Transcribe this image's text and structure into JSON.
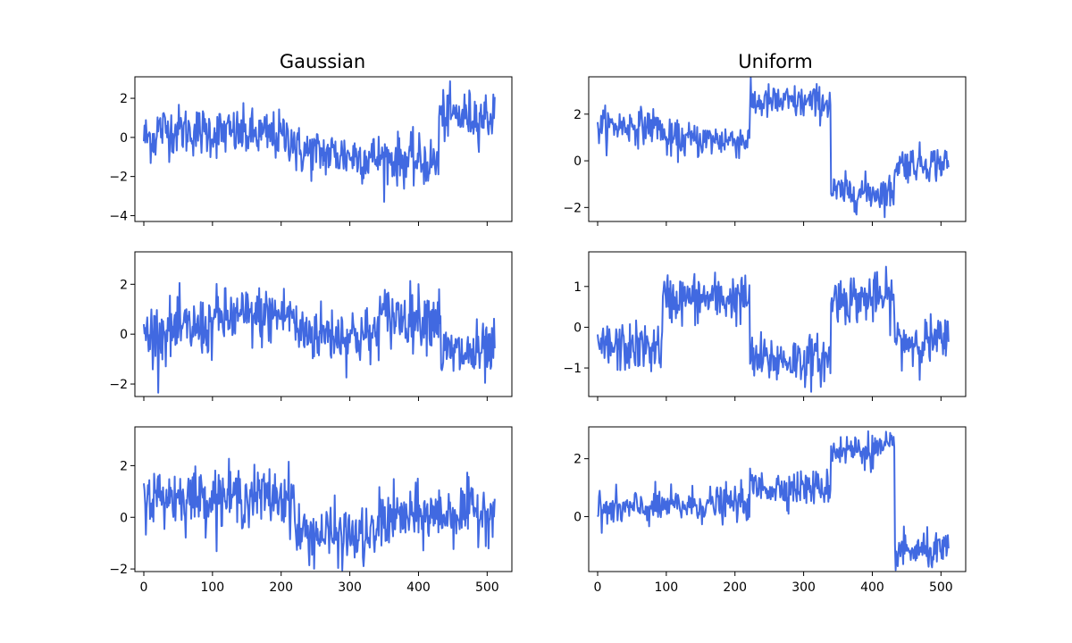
{
  "chart_data": {
    "type": "line",
    "color": "#4169E1",
    "columns": [
      "Gaussian",
      "Uniform"
    ],
    "x_ticks": [
      0,
      100,
      200,
      300,
      400,
      500
    ],
    "x_range": [
      -13,
      536
    ],
    "n_points": 512,
    "panels": [
      {
        "id": "gaussian-1",
        "title": "Gaussian",
        "ylim": [
          -4.3,
          3.1
        ],
        "y_ticks": [
          -4,
          -2,
          0,
          2
        ],
        "segments": [
          [
            0,
            20,
            0.0,
            0.0
          ],
          [
            20,
            220,
            0.45,
            0.0
          ],
          [
            220,
            430,
            -0.7,
            -1.3
          ],
          [
            430,
            512,
            1.1,
            1.1
          ]
        ],
        "noise": 0.85
      },
      {
        "id": "uniform-1",
        "title": "Uniform",
        "ylim": [
          -2.6,
          3.6
        ],
        "y_ticks": [
          -2,
          0,
          2
        ],
        "segments": [
          [
            0,
            95,
            1.5,
            1.5
          ],
          [
            95,
            222,
            0.9,
            0.9
          ],
          [
            222,
            340,
            2.5,
            2.5
          ],
          [
            340,
            433,
            -1.35,
            -1.35
          ],
          [
            433,
            512,
            -0.1,
            -0.1
          ]
        ],
        "noise": 0.5
      },
      {
        "id": "gaussian-2",
        "title": "",
        "ylim": [
          -2.5,
          3.3
        ],
        "y_ticks": [
          -2,
          0,
          2
        ],
        "segments": [
          [
            0,
            100,
            0.0,
            0.3
          ],
          [
            100,
            220,
            0.6,
            0.8
          ],
          [
            220,
            340,
            0.1,
            -0.1
          ],
          [
            340,
            433,
            0.7,
            0.7
          ],
          [
            433,
            512,
            -0.8,
            -0.8
          ]
        ],
        "noise": 0.8
      },
      {
        "id": "uniform-2",
        "title": "",
        "ylim": [
          -1.7,
          1.85
        ],
        "y_ticks": [
          -1,
          0,
          1
        ],
        "segments": [
          [
            0,
            95,
            -0.5,
            -0.5
          ],
          [
            95,
            222,
            0.7,
            0.7
          ],
          [
            222,
            340,
            -0.8,
            -0.8
          ],
          [
            340,
            433,
            0.7,
            0.7
          ],
          [
            433,
            512,
            -0.35,
            -0.35
          ]
        ],
        "noise": 0.4
      },
      {
        "id": "gaussian-3",
        "title": "",
        "ylim": [
          -2.1,
          3.5
        ],
        "y_ticks": [
          -2,
          0,
          2
        ],
        "segments": [
          [
            0,
            220,
            0.8,
            0.8
          ],
          [
            220,
            340,
            -0.6,
            -0.8
          ],
          [
            340,
            512,
            -0.1,
            0.3
          ]
        ],
        "noise": 0.75
      },
      {
        "id": "uniform-3",
        "title": "",
        "ylim": [
          -1.9,
          3.1
        ],
        "y_ticks": [
          0,
          2
        ],
        "segments": [
          [
            0,
            222,
            0.2,
            0.5
          ],
          [
            222,
            340,
            1.0,
            1.0
          ],
          [
            340,
            433,
            2.3,
            2.3
          ],
          [
            433,
            512,
            -1.2,
            -1.2
          ]
        ],
        "noise": 0.4
      }
    ]
  }
}
